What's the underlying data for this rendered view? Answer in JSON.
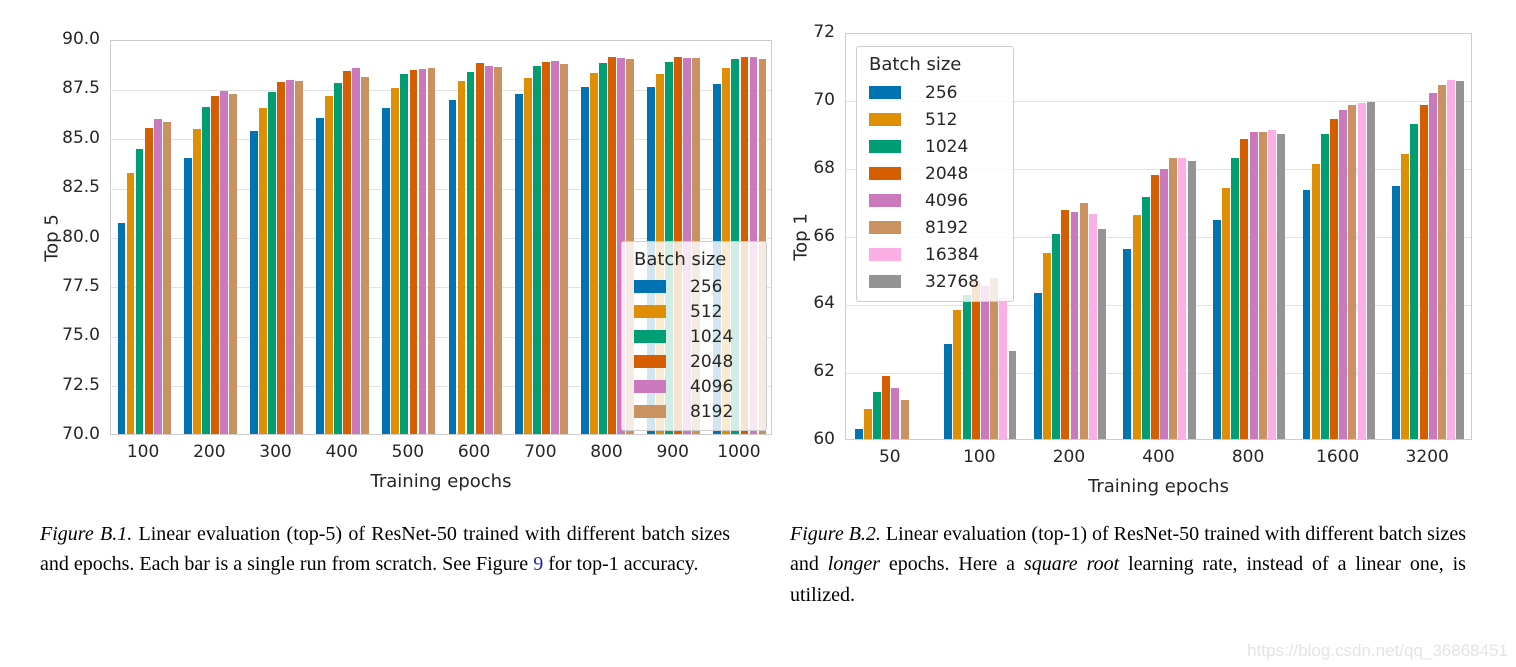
{
  "watermark": "https://blog.csdn.net/qq_36868451",
  "chart_data": [
    {
      "id": "top5",
      "type": "bar",
      "title": "",
      "xlabel": "Training epochs",
      "ylabel": "Top 5",
      "ylim": [
        70,
        90
      ],
      "ytick_step": 2.5,
      "ytick_format": "1dp",
      "grid": true,
      "legend_title": "Batch size",
      "legend_position": "lower right",
      "categories": [
        "100",
        "200",
        "300",
        "400",
        "500",
        "600",
        "700",
        "800",
        "900",
        "1000"
      ],
      "series": [
        {
          "name": "256",
          "color": "#0173b2",
          "values": [
            80.7,
            84.0,
            85.35,
            86.0,
            86.5,
            86.9,
            87.2,
            87.55,
            87.55,
            87.7
          ]
        },
        {
          "name": "512",
          "color": "#de8f05",
          "values": [
            83.2,
            85.45,
            86.5,
            87.1,
            87.5,
            87.9,
            88.05,
            88.3,
            88.25,
            88.55
          ]
        },
        {
          "name": "1024",
          "color": "#029e73",
          "values": [
            84.45,
            86.55,
            87.3,
            87.75,
            88.25,
            88.35,
            88.65,
            88.8,
            88.85,
            89.0
          ]
        },
        {
          "name": "2048",
          "color": "#d55e00",
          "values": [
            85.5,
            87.1,
            87.85,
            88.4,
            88.45,
            88.8,
            88.85,
            89.1,
            89.1,
            89.1
          ]
        },
        {
          "name": "4096",
          "color": "#cc78bc",
          "values": [
            85.95,
            87.35,
            87.95,
            88.55,
            88.5,
            88.65,
            88.9,
            89.05,
            89.05,
            89.1
          ]
        },
        {
          "name": "8192",
          "color": "#ca9161",
          "values": [
            85.8,
            87.2,
            87.9,
            88.1,
            88.55,
            88.6,
            88.75,
            89.0,
            89.05,
            89.0
          ]
        }
      ]
    },
    {
      "id": "top1",
      "type": "bar",
      "title": "",
      "xlabel": "Training epochs",
      "ylabel": "Top 1",
      "ylim": [
        60,
        72
      ],
      "ytick_step": 2,
      "ytick_format": "int",
      "grid": true,
      "legend_title": "Batch size",
      "legend_position": "upper left",
      "categories": [
        "50",
        "100",
        "200",
        "400",
        "800",
        "1600",
        "3200"
      ],
      "series": [
        {
          "name": "256",
          "color": "#0173b2",
          "values": [
            60.3,
            62.8,
            64.3,
            65.6,
            66.45,
            67.35,
            67.45
          ]
        },
        {
          "name": "512",
          "color": "#de8f05",
          "values": [
            60.9,
            63.8,
            65.5,
            66.6,
            67.4,
            68.1,
            68.4
          ]
        },
        {
          "name": "1024",
          "color": "#029e73",
          "values": [
            61.4,
            64.25,
            66.05,
            67.15,
            68.3,
            69.0,
            69.3
          ]
        },
        {
          "name": "2048",
          "color": "#d55e00",
          "values": [
            61.85,
            64.65,
            66.75,
            67.8,
            68.85,
            69.45,
            69.85
          ]
        },
        {
          "name": "4096",
          "color": "#cc78bc",
          "values": [
            61.5,
            64.5,
            66.7,
            67.95,
            69.05,
            69.7,
            70.2
          ]
        },
        {
          "name": "8192",
          "color": "#ca9161",
          "values": [
            61.15,
            64.75,
            66.95,
            68.3,
            69.05,
            69.85,
            70.45
          ]
        },
        {
          "name": "16384",
          "color": "#fbafe4",
          "values": [
            null,
            64.15,
            66.65,
            68.3,
            69.1,
            69.9,
            70.6
          ]
        },
        {
          "name": "32768",
          "color": "#949494",
          "values": [
            null,
            62.6,
            66.2,
            68.2,
            69.0,
            69.95,
            70.55
          ]
        }
      ]
    }
  ],
  "captions": [
    {
      "segments": [
        {
          "text": "Figure B.1.",
          "style": "italic"
        },
        {
          "text": " Linear evaluation (top-5) of ResNet-50 trained with different batch sizes and epochs.  Each bar is a single run from scratch. See Figure ",
          "style": "normal"
        },
        {
          "text": "9",
          "style": "link"
        },
        {
          "text": " for top-1 accuracy.",
          "style": "normal"
        }
      ]
    },
    {
      "segments": [
        {
          "text": "Figure B.2.",
          "style": "italic"
        },
        {
          "text": " Linear evaluation (top-1) of ResNet-50 trained with different batch sizes and ",
          "style": "normal"
        },
        {
          "text": "longer",
          "style": "italic"
        },
        {
          "text": " epochs. Here a ",
          "style": "normal"
        },
        {
          "text": "square root",
          "style": "italic"
        },
        {
          "text": " learning rate, instead of a linear one, is utilized.",
          "style": "normal"
        }
      ]
    }
  ]
}
